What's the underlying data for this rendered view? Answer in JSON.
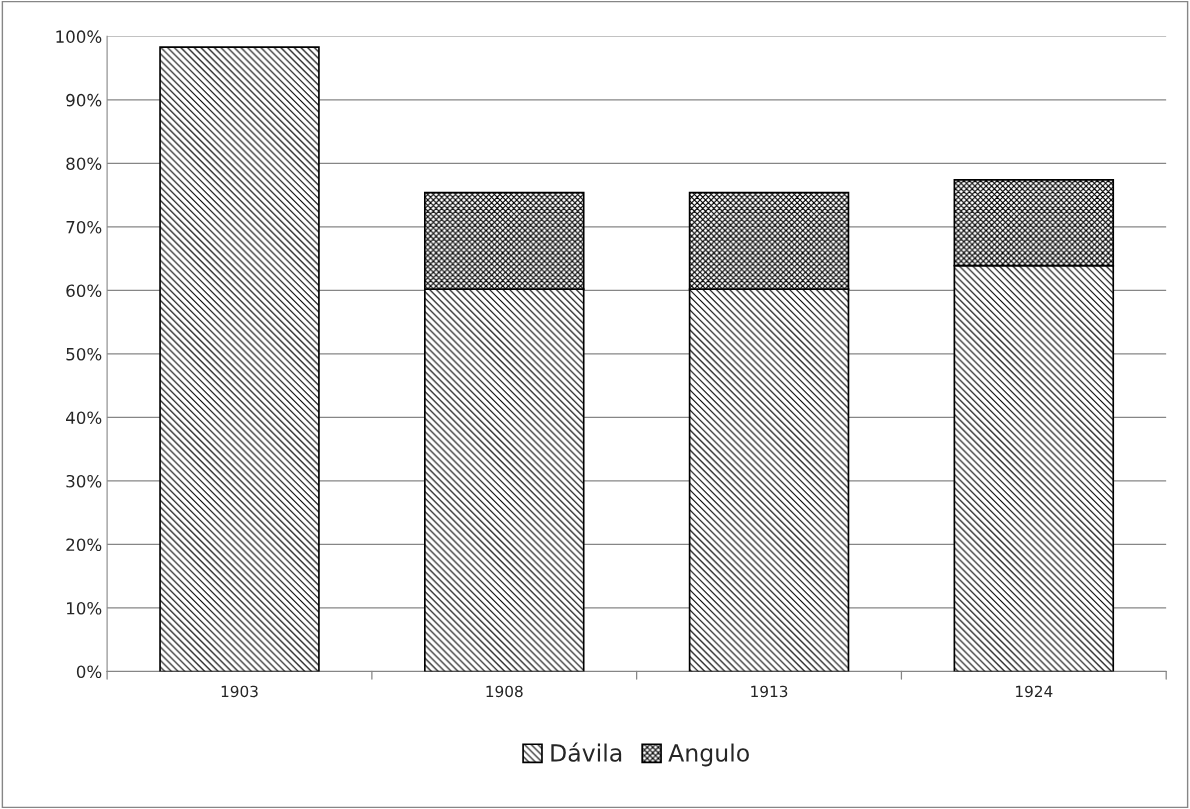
{
  "chart_data": {
    "type": "bar",
    "stacked": true,
    "categories": [
      "1903",
      "1908",
      "1913",
      "1924"
    ],
    "series": [
      {
        "name": "Dávila",
        "color": "#000000",
        "values": [
          98.3,
          60.2,
          60.2,
          63.9
        ]
      },
      {
        "name": "Angulo",
        "color": "#000000",
        "values": [
          null,
          15.2,
          15.2,
          13.5
        ]
      }
    ],
    "ylim": [
      0,
      100
    ],
    "yticks": [
      {
        "value": 0,
        "label": "0%"
      },
      {
        "value": 10,
        "label": "10%"
      },
      {
        "value": 20,
        "label": "20%"
      },
      {
        "value": 30,
        "label": "30%"
      },
      {
        "value": 40,
        "label": "40%"
      },
      {
        "value": 50,
        "label": "50%"
      },
      {
        "value": 60,
        "label": "60%"
      },
      {
        "value": 70,
        "label": "70%"
      },
      {
        "value": 80,
        "label": "80%"
      },
      {
        "value": 90,
        "label": "90%"
      },
      {
        "value": 100,
        "label": "100%"
      }
    ],
    "grid": "y",
    "legend": "bottom"
  }
}
